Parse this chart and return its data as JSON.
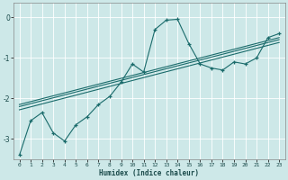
{
  "xlabel": "Humidex (Indice chaleur)",
  "bg_color": "#cde8e8",
  "line_color": "#1a6b6b",
  "grid_color": "#ffffff",
  "xlim": [
    -0.5,
    23.5
  ],
  "ylim": [
    -3.5,
    0.35
  ],
  "yticks": [
    0,
    -1,
    -2,
    -3
  ],
  "xticks": [
    0,
    1,
    2,
    3,
    4,
    5,
    6,
    7,
    8,
    9,
    10,
    11,
    12,
    13,
    14,
    15,
    16,
    17,
    18,
    19,
    20,
    21,
    22,
    23
  ],
  "series_zigzag": [
    [
      0,
      -3.4
    ],
    [
      1,
      -2.55
    ],
    [
      2,
      -2.35
    ],
    [
      3,
      -2.85
    ],
    [
      4,
      -3.05
    ],
    [
      5,
      -2.65
    ],
    [
      6,
      -2.45
    ],
    [
      7,
      -2.15
    ],
    [
      8,
      -1.95
    ],
    [
      9,
      -1.6
    ],
    [
      10,
      -1.15
    ],
    [
      11,
      -1.35
    ],
    [
      12,
      -0.3
    ],
    [
      13,
      -0.07
    ],
    [
      14,
      -0.05
    ],
    [
      15,
      -0.65
    ],
    [
      16,
      -1.15
    ],
    [
      17,
      -1.25
    ],
    [
      18,
      -1.3
    ],
    [
      19,
      -1.1
    ],
    [
      20,
      -1.15
    ],
    [
      21,
      -1.0
    ],
    [
      22,
      -0.5
    ],
    [
      23,
      -0.4
    ]
  ],
  "series_smooth1": [
    [
      0,
      -2.15
    ],
    [
      23,
      -0.5
    ]
  ],
  "series_smooth2": [
    [
      0,
      -2.2
    ],
    [
      23,
      -0.55
    ]
  ],
  "series_smooth3": [
    [
      0,
      -2.28
    ],
    [
      23,
      -0.62
    ]
  ]
}
